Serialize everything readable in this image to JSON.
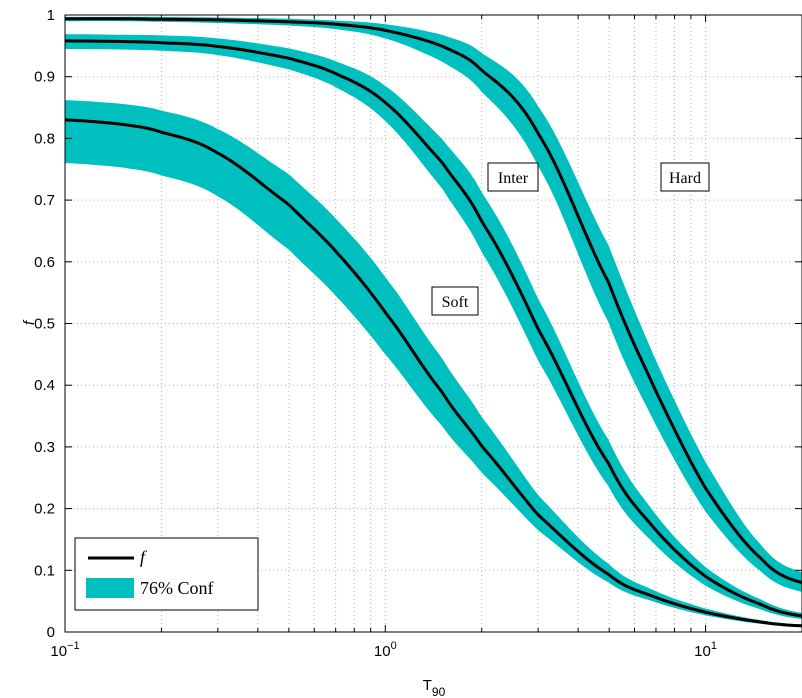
{
  "chart_data": {
    "type": "area",
    "title": "",
    "xlabel": "T",
    "xlabel_sub": "90",
    "ylabel": "f",
    "xscale": "log",
    "xlim": [
      0.1,
      20
    ],
    "ylim": [
      0,
      1
    ],
    "grid": true,
    "legend_position": "bottom-left",
    "x_ticks": [
      {
        "base": "10",
        "exp": "−1",
        "value": 0.1
      },
      {
        "base": "10",
        "exp": "0",
        "value": 1
      },
      {
        "base": "10",
        "exp": "1",
        "value": 10
      }
    ],
    "y_ticks": [
      "0",
      "0.1",
      "0.2",
      "0.3",
      "0.4",
      "0.5",
      "0.6",
      "0.7",
      "0.8",
      "0.9",
      "1"
    ],
    "x": [
      0.1,
      0.15,
      0.2,
      0.3,
      0.5,
      0.7,
      1.0,
      1.5,
      2.0,
      3.0,
      5.0,
      7.0,
      10.0,
      15.0,
      20.0
    ],
    "series": [
      {
        "name": "Soft",
        "values": [
          0.83,
          0.823,
          0.81,
          0.776,
          0.693,
          0.617,
          0.518,
          0.39,
          0.301,
          0.19,
          0.093,
          0.056,
          0.032,
          0.016,
          0.01
        ],
        "lower": [
          0.76,
          0.753,
          0.74,
          0.706,
          0.62,
          0.545,
          0.45,
          0.335,
          0.258,
          0.165,
          0.08,
          0.048,
          0.027,
          0.013,
          0.008
        ],
        "upper": [
          0.862,
          0.856,
          0.845,
          0.815,
          0.742,
          0.67,
          0.575,
          0.445,
          0.348,
          0.222,
          0.11,
          0.066,
          0.038,
          0.019,
          0.012
        ]
      },
      {
        "name": "Inter",
        "values": [
          0.958,
          0.957,
          0.955,
          0.949,
          0.93,
          0.905,
          0.858,
          0.762,
          0.665,
          0.491,
          0.272,
          0.165,
          0.09,
          0.044,
          0.026
        ],
        "lower": [
          0.945,
          0.944,
          0.942,
          0.935,
          0.912,
          0.883,
          0.828,
          0.72,
          0.615,
          0.44,
          0.235,
          0.14,
          0.075,
          0.036,
          0.021
        ],
        "upper": [
          0.969,
          0.968,
          0.967,
          0.962,
          0.946,
          0.925,
          0.885,
          0.8,
          0.712,
          0.54,
          0.31,
          0.19,
          0.105,
          0.052,
          0.031
        ]
      },
      {
        "name": "Hard",
        "values": [
          0.994,
          0.994,
          0.993,
          0.992,
          0.989,
          0.985,
          0.975,
          0.95,
          0.91,
          0.808,
          0.565,
          0.39,
          0.233,
          0.118,
          0.08
        ],
        "lower": [
          0.99,
          0.99,
          0.989,
          0.987,
          0.983,
          0.977,
          0.962,
          0.925,
          0.875,
          0.755,
          0.5,
          0.335,
          0.195,
          0.097,
          0.065
        ],
        "upper": [
          0.997,
          0.997,
          0.997,
          0.996,
          0.994,
          0.991,
          0.985,
          0.968,
          0.938,
          0.852,
          0.625,
          0.44,
          0.275,
          0.14,
          0.097
        ]
      }
    ],
    "legend": [
      {
        "label": "f",
        "kind": "line",
        "color": "#000000"
      },
      {
        "label": "76% Conf",
        "kind": "patch",
        "color": "#00BFBF"
      }
    ],
    "annotations": [
      "Soft",
      "Inter",
      "Hard"
    ],
    "colors": {
      "band": "#00BFBF",
      "line": "#000000",
      "grid": "#b3b3b3"
    }
  }
}
